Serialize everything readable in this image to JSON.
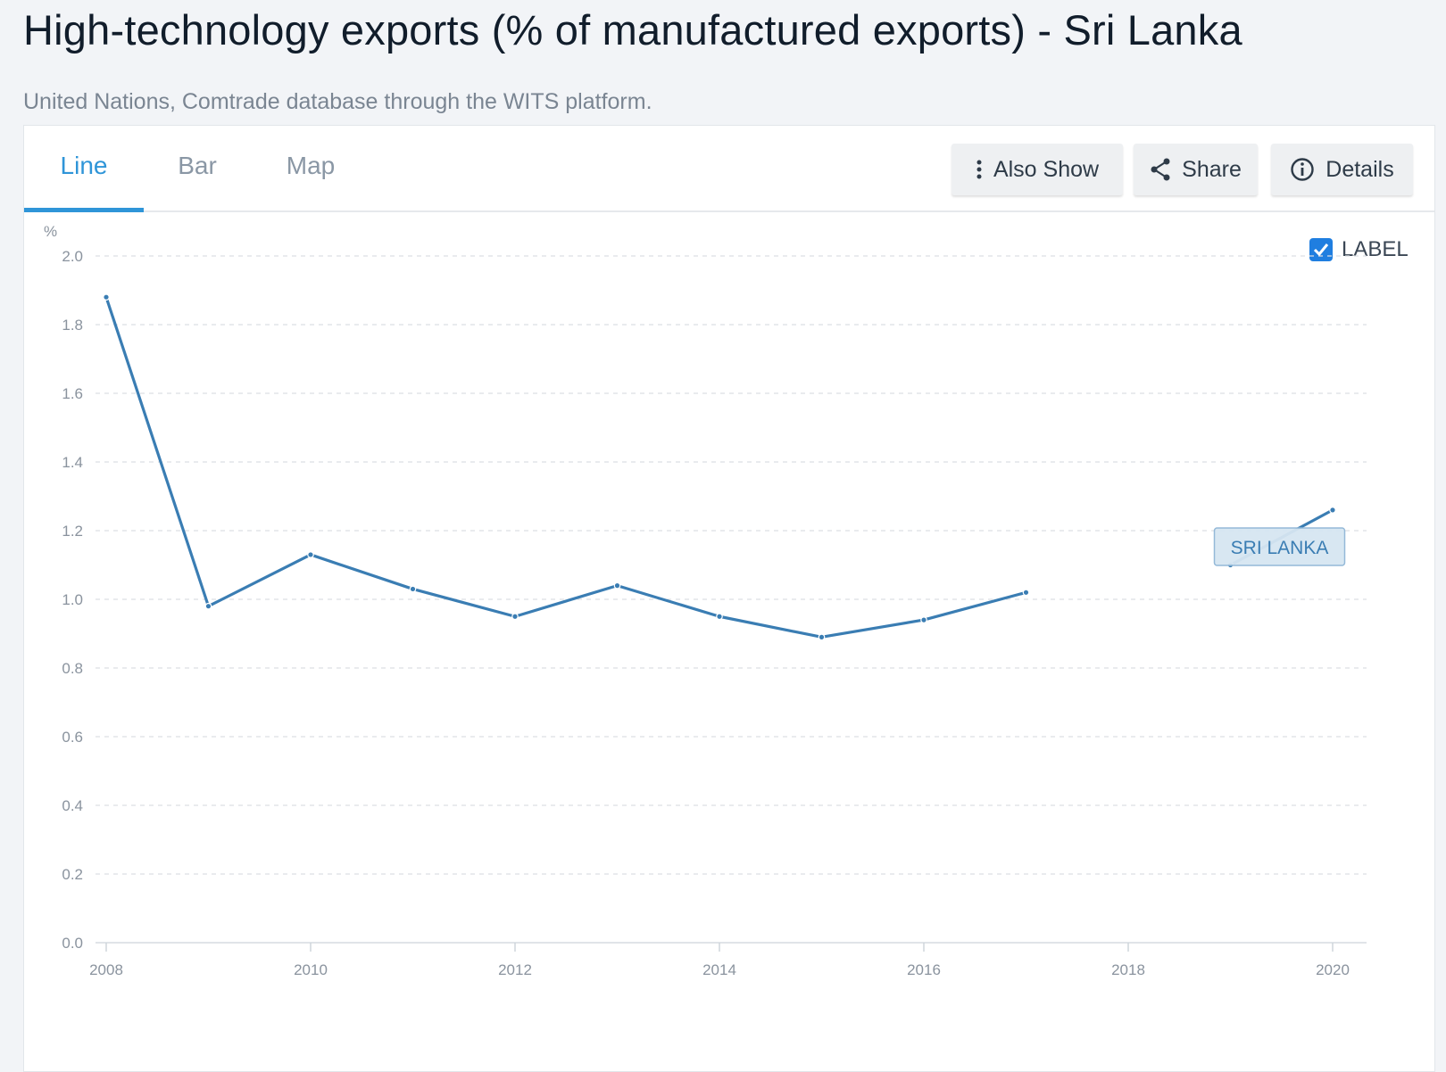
{
  "page": {
    "title": "High-technology exports (% of manufactured exports) - Sri Lanka",
    "source": "United Nations, Comtrade database through the WITS platform."
  },
  "tabs": [
    {
      "label": "Line",
      "active": true
    },
    {
      "label": "Bar",
      "active": false
    },
    {
      "label": "Map",
      "active": false
    }
  ],
  "toolbar": {
    "also_show": {
      "label": "Also Show",
      "icon": "vertical-dots-icon"
    },
    "share": {
      "label": "Share",
      "icon": "share-icon"
    },
    "details": {
      "label": "Details",
      "icon": "info-icon"
    }
  },
  "label_toggle": {
    "label": "LABEL",
    "checked": true
  },
  "colors": {
    "line": "#3a7db3",
    "accent": "#2f95d8",
    "label_bg": "#d6e6f2",
    "label_border": "#8fb6d6"
  },
  "chart_data": {
    "type": "line",
    "ylabel": "%",
    "ylim": [
      0,
      2.0
    ],
    "yticks": [
      "0.0",
      "0.2",
      "0.4",
      "0.6",
      "0.8",
      "1.0",
      "1.2",
      "1.4",
      "1.6",
      "1.8",
      "2.0"
    ],
    "xlim": [
      2008,
      2020
    ],
    "xticks": [
      "2008",
      "2010",
      "2012",
      "2014",
      "2016",
      "2018",
      "2020"
    ],
    "grid": true,
    "series": [
      {
        "name": "SRI LANKA",
        "x": [
          2008,
          2009,
          2010,
          2011,
          2012,
          2013,
          2014,
          2015,
          2016,
          2017,
          2018,
          2019,
          2020
        ],
        "y": [
          1.88,
          0.98,
          1.13,
          1.03,
          0.95,
          1.04,
          0.95,
          0.89,
          0.94,
          1.02,
          null,
          1.1,
          1.26
        ]
      }
    ]
  }
}
